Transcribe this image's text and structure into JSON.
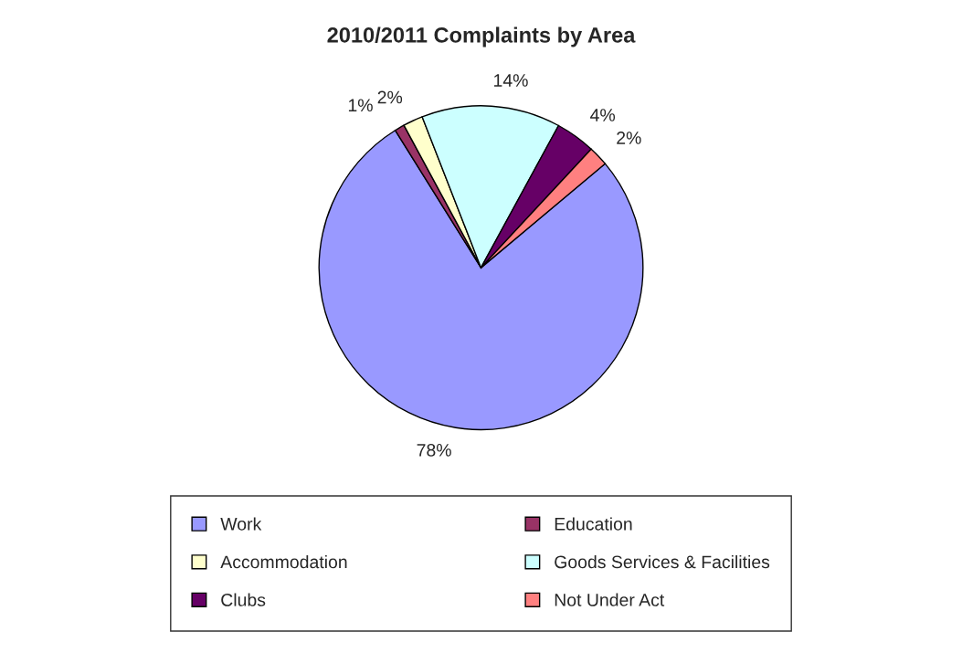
{
  "chart_data": {
    "type": "pie",
    "title": "2010/2011 Complaints by Area",
    "categories": [
      "Work",
      "Education",
      "Accommodation",
      "Goods Services & Facilities",
      "Clubs",
      "Not Under Act"
    ],
    "values": [
      78,
      1,
      2,
      14,
      4,
      2
    ],
    "value_labels": [
      "78%",
      "1%",
      "2%",
      "14%",
      "4%",
      "2%"
    ],
    "colors": [
      "#9999ff",
      "#993366",
      "#ffffcc",
      "#ccffff",
      "#660066",
      "#ff8080"
    ],
    "legend": "bottom"
  }
}
